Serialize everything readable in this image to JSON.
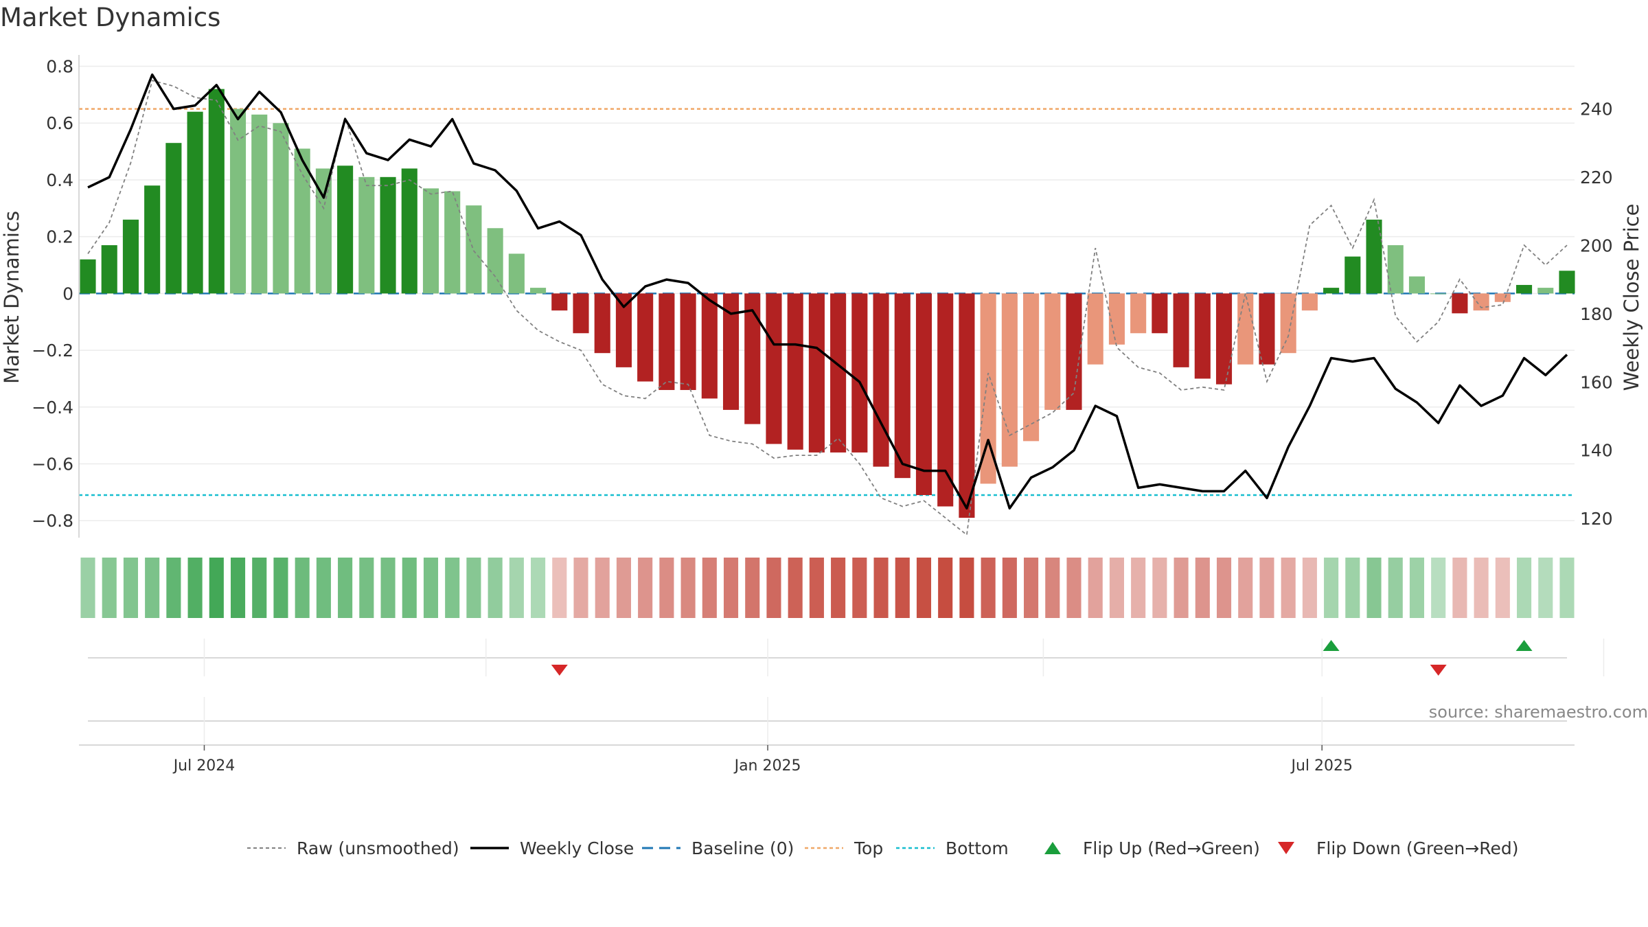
{
  "title": "Market Dynamics",
  "source": "source: sharemaestro.com",
  "chart_data": {
    "type": "bar",
    "ylabel_left": "Market Dynamics",
    "ylabel_right": "Weekly Close Price",
    "ylim_left": [
      -0.86,
      0.84
    ],
    "ylim_right": [
      114.4,
      255.8
    ],
    "yticks_left": [
      0.8,
      0.6,
      0.4,
      0.2,
      0,
      -0.2,
      -0.4,
      -0.6,
      -0.8
    ],
    "ytick_labels_left": [
      "0.8",
      "0.6",
      "0.4",
      "0.2",
      "0",
      "−0.2",
      "−0.4",
      "−0.6",
      "−0.8"
    ],
    "yticks_right": [
      240,
      220,
      200,
      180,
      160,
      140,
      120
    ],
    "ytick_labels_right": [
      "240",
      "220",
      "200",
      "180",
      "160",
      "140",
      "120"
    ],
    "start_date": "2024-05-24",
    "x_ticks": [
      {
        "date": "2024-07-01",
        "label": "Jul 2024"
      },
      {
        "date": "2025-01-01",
        "label": "Jan 2025"
      },
      {
        "date": "2025-07-01",
        "label": "Jul 2025"
      }
    ],
    "top_line": 0.65,
    "bottom_line": -0.71,
    "baseline": 0,
    "dynamics": [
      0.12,
      0.17,
      0.26,
      0.38,
      0.53,
      0.64,
      0.72,
      0.65,
      0.63,
      0.6,
      0.51,
      0.44,
      0.45,
      0.41,
      0.41,
      0.44,
      0.37,
      0.36,
      0.31,
      0.23,
      0.14,
      0.02,
      -0.06,
      -0.14,
      -0.21,
      -0.26,
      -0.31,
      -0.34,
      -0.34,
      -0.37,
      -0.41,
      -0.46,
      -0.53,
      -0.55,
      -0.56,
      -0.56,
      -0.56,
      -0.61,
      -0.65,
      -0.71,
      -0.75,
      -0.79,
      -0.67,
      -0.61,
      -0.52,
      -0.41,
      -0.41,
      -0.25,
      -0.18,
      -0.14,
      -0.14,
      -0.26,
      -0.3,
      -0.32,
      -0.25,
      -0.25,
      -0.21,
      -0.06,
      0.02,
      0.13,
      0.26,
      0.17,
      0.06,
      0.0,
      -0.07,
      -0.06,
      -0.03,
      0.03,
      0.02,
      0.08
    ],
    "raw": [
      0.14,
      0.25,
      0.46,
      0.75,
      0.73,
      0.69,
      0.68,
      0.54,
      0.59,
      0.57,
      0.42,
      0.3,
      0.62,
      0.38,
      0.38,
      0.4,
      0.35,
      0.36,
      0.15,
      0.06,
      -0.06,
      -0.13,
      -0.17,
      -0.2,
      -0.32,
      -0.36,
      -0.37,
      -0.31,
      -0.32,
      -0.5,
      -0.52,
      -0.53,
      -0.58,
      -0.57,
      -0.57,
      -0.51,
      -0.6,
      -0.72,
      -0.75,
      -0.73,
      -0.79,
      -0.85,
      -0.28,
      -0.5,
      -0.46,
      -0.42,
      -0.35,
      0.16,
      -0.19,
      -0.26,
      -0.28,
      -0.34,
      -0.33,
      -0.34,
      0.0,
      -0.31,
      -0.15,
      0.24,
      0.31,
      0.16,
      0.33,
      -0.08,
      -0.17,
      -0.1,
      0.05,
      -0.05,
      -0.04,
      0.17,
      0.1,
      0.17
    ],
    "close": [
      217,
      220,
      234,
      250,
      240,
      241,
      247,
      237,
      245,
      239,
      225,
      214,
      237,
      227,
      225,
      231,
      229,
      237,
      224,
      222,
      216,
      205,
      207,
      203,
      190,
      182,
      188,
      190,
      189,
      184,
      180,
      181,
      171,
      171,
      170,
      165,
      160,
      148,
      136,
      134,
      134,
      123,
      143,
      123,
      132,
      135,
      140,
      153,
      150,
      129,
      130,
      129,
      128,
      128,
      134,
      126,
      141,
      153,
      167,
      166,
      167,
      158,
      154,
      148,
      159,
      153,
      156,
      167,
      162,
      168
    ],
    "heat_strength": [
      0.42,
      0.55,
      0.58,
      0.62,
      0.8,
      0.9,
      1.0,
      0.95,
      0.88,
      0.85,
      0.72,
      0.7,
      0.7,
      0.66,
      0.66,
      0.7,
      0.64,
      0.6,
      0.55,
      0.48,
      0.35,
      0.3,
      0.2,
      0.35,
      0.4,
      0.45,
      0.5,
      0.55,
      0.58,
      0.65,
      0.68,
      0.72,
      0.8,
      0.85,
      0.88,
      0.9,
      0.88,
      0.92,
      0.95,
      0.98,
      1.0,
      1.0,
      0.85,
      0.8,
      0.7,
      0.6,
      0.55,
      0.4,
      0.32,
      0.3,
      0.3,
      0.45,
      0.5,
      0.5,
      0.4,
      0.4,
      0.35,
      0.25,
      0.35,
      0.4,
      0.55,
      0.45,
      0.4,
      0.22,
      0.25,
      0.22,
      0.2,
      0.3,
      0.25,
      0.3
    ],
    "flips": [
      {
        "index": 22,
        "direction": "down"
      },
      {
        "index": 58,
        "direction": "up"
      },
      {
        "index": 63,
        "direction": "down"
      },
      {
        "index": 67,
        "direction": "up"
      }
    ],
    "legend": [
      "Raw (unsmoothed)",
      "Weekly Close",
      "Baseline (0)",
      "Top",
      "Bottom",
      "Flip Up (Red→Green)",
      "Flip Down (Green→Red)"
    ],
    "legend_placement": "bottom-center",
    "colors": {
      "strong_up": "#228b22",
      "weak_up": "#7fbf7f",
      "strong_down": "#b22222",
      "weak_down": "#e9967a",
      "heat_up": "#2e9e44",
      "heat_down": "#c0392b",
      "close": "#000000",
      "raw": "#808080",
      "baseline": "#1f77b4",
      "top": "#f0a868",
      "bottom": "#17becf",
      "flip_up": "#1a9e3c",
      "flip_down": "#d62728"
    }
  }
}
